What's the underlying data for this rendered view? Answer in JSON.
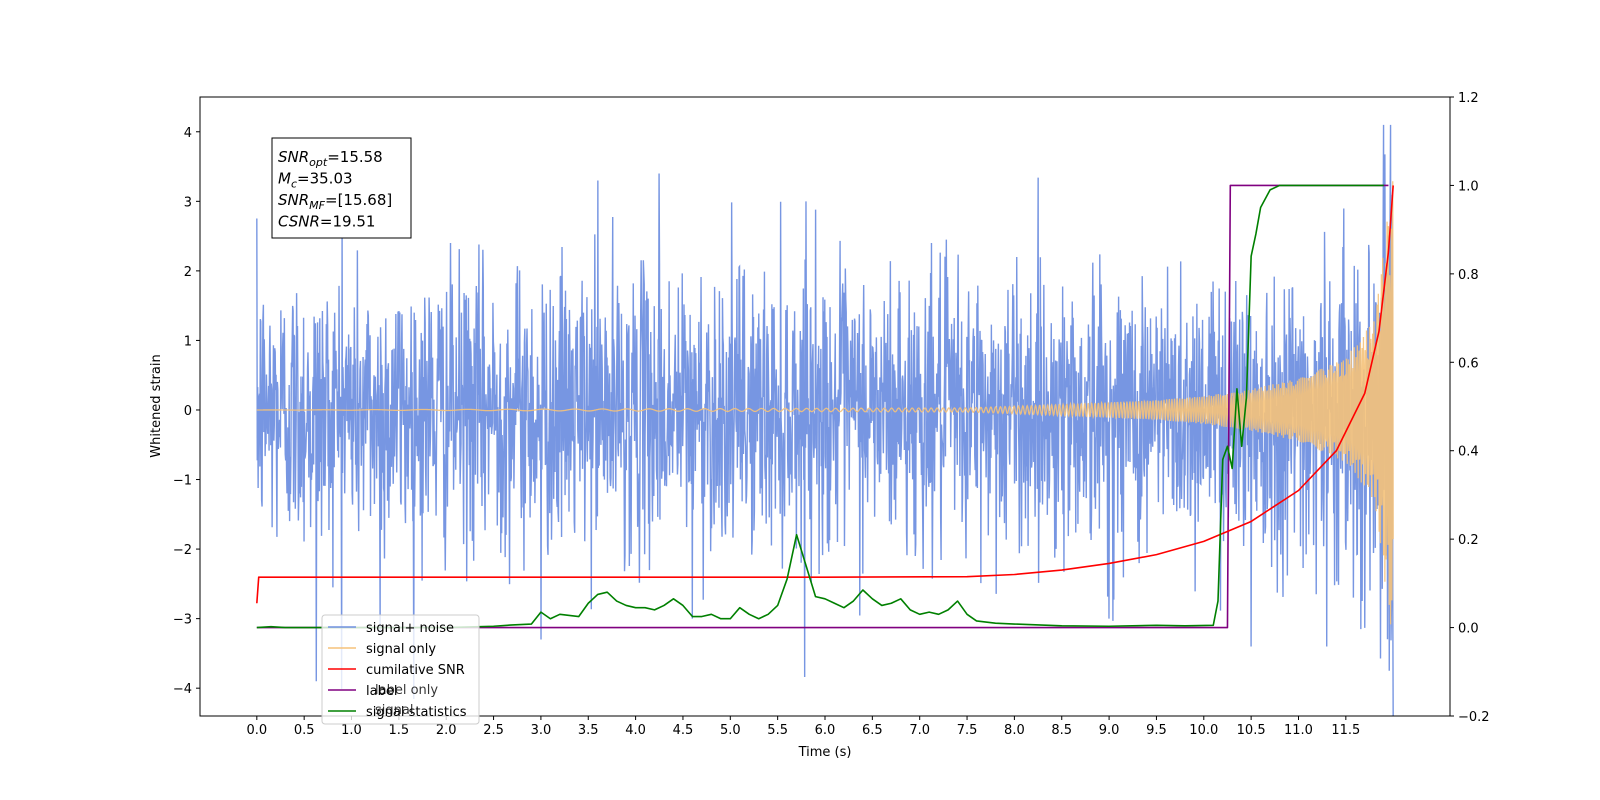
{
  "chart_data": {
    "type": "line",
    "xlabel": "Time (s)",
    "ylabel": "Whitened strain",
    "xlim": [
      -0.6,
      12.6
    ],
    "ylim": [
      -4.4,
      4.5
    ],
    "y2lim": [
      -0.2,
      1.2
    ],
    "x_ticks": [
      "0.0",
      "0.5",
      "1.0",
      "1.5",
      "2.0",
      "2.5",
      "3.0",
      "3.5",
      "4.0",
      "4.5",
      "5.0",
      "5.5",
      "6.0",
      "6.5",
      "7.0",
      "7.5",
      "8.0",
      "8.5",
      "9.0",
      "9.5",
      "10.0",
      "10.5",
      "11.0",
      "11.5"
    ],
    "y_ticks": [
      "4",
      "3",
      "2",
      "1",
      "0",
      "−1",
      "−2",
      "−3",
      "−4"
    ],
    "y2_ticks": [
      "1.2",
      "1.0",
      "0.8",
      "0.6",
      "0.4",
      "0.2",
      "0.0",
      "−0.2"
    ],
    "annotation": {
      "lines": [
        {
          "sym": "SNR",
          "sub": "opt",
          "val": "=15.58"
        },
        {
          "sym": "M",
          "sub": "c",
          "val": "=35.03"
        },
        {
          "sym": "SNR",
          "sub": "MF",
          "val": "=[15.68]"
        },
        {
          "sym": "CSNR",
          "sub": "",
          "val": "=19.51"
        }
      ]
    },
    "legend": {
      "position": "lower-left",
      "entries": [
        {
          "label": "signal+ noise",
          "color": "#7090e0"
        },
        {
          "label": "signal only",
          "color": "#f5c27a"
        },
        {
          "label": "cumilative SNR",
          "color": "#ff0000"
        },
        {
          "label": "label",
          "color": "#800080"
        },
        {
          "label": "signal statistics",
          "color": "#008000"
        }
      ],
      "overdrawn_text": [
        "label only",
        "signal"
      ]
    },
    "series": [
      {
        "name": "signal+ noise",
        "axis": "left",
        "color": "#7090e0",
        "x_range": [
          0.0,
          12.0
        ],
        "envelope_typical": [
          -1.6,
          1.6
        ],
        "spikes": [
          {
            "x": 0.63,
            "y": -3.9
          },
          {
            "x": 0.9,
            "y": 2.8
          },
          {
            "x": 1.3,
            "y": -3.2
          },
          {
            "x": 3.0,
            "y": -3.3
          },
          {
            "x": 3.6,
            "y": 3.3
          },
          {
            "x": 4.25,
            "y": 3.4
          },
          {
            "x": 4.6,
            "y": -3.0
          },
          {
            "x": 5.8,
            "y": 3.0
          },
          {
            "x": 9.0,
            "y": -3.0
          },
          {
            "x": 10.5,
            "y": -3.4
          },
          {
            "x": 11.3,
            "y": 3.55
          },
          {
            "x": 11.3,
            "y": -3.4
          },
          {
            "x": 11.9,
            "y": 4.1
          },
          {
            "x": 11.96,
            "y": -3.75
          },
          {
            "x": 11.97,
            "y": 4.1
          }
        ]
      },
      {
        "name": "signal only",
        "axis": "left",
        "color": "#f5c27a",
        "x": [
          0.0,
          7.5,
          8.5,
          9.5,
          10.0,
          10.5,
          11.0,
          11.5,
          11.8,
          12.0
        ],
        "amplitude": [
          0.0,
          0.03,
          0.08,
          0.14,
          0.2,
          0.3,
          0.45,
          0.75,
          1.3,
          3.4
        ]
      },
      {
        "name": "cumilative SNR",
        "axis": "right",
        "color": "#ff0000",
        "x": [
          0.0,
          0.02,
          0.5,
          2.0,
          4.0,
          6.0,
          7.5,
          8.0,
          8.5,
          9.0,
          9.5,
          10.0,
          10.5,
          11.0,
          11.4,
          11.7,
          11.85,
          11.95,
          12.0
        ],
        "y": [
          0.055,
          0.114,
          0.114,
          0.114,
          0.114,
          0.114,
          0.115,
          0.12,
          0.13,
          0.145,
          0.165,
          0.195,
          0.24,
          0.31,
          0.4,
          0.53,
          0.67,
          0.85,
          1.0
        ]
      },
      {
        "name": "label",
        "axis": "right",
        "color": "#800080",
        "x": [
          0.0,
          10.25,
          10.28,
          11.95
        ],
        "y": [
          0.0,
          0.0,
          1.0,
          1.0
        ]
      },
      {
        "name": "signal statistics",
        "axis": "right",
        "color": "#008000",
        "x": [
          0.0,
          0.15,
          0.3,
          0.5,
          1.0,
          2.0,
          2.5,
          2.7,
          2.9,
          3.0,
          3.1,
          3.2,
          3.4,
          3.5,
          3.6,
          3.7,
          3.8,
          3.9,
          4.0,
          4.1,
          4.2,
          4.3,
          4.4,
          4.5,
          4.6,
          4.7,
          4.8,
          4.9,
          5.0,
          5.1,
          5.2,
          5.3,
          5.4,
          5.5,
          5.6,
          5.7,
          5.8,
          5.9,
          6.0,
          6.1,
          6.2,
          6.3,
          6.4,
          6.5,
          6.6,
          6.7,
          6.8,
          6.9,
          7.0,
          7.1,
          7.2,
          7.3,
          7.4,
          7.5,
          7.6,
          7.8,
          8.0,
          8.5,
          9.0,
          9.5,
          9.8,
          10.1,
          10.15,
          10.2,
          10.25,
          10.3,
          10.35,
          10.4,
          10.45,
          10.5,
          10.55,
          10.6,
          10.7,
          10.8,
          11.0,
          11.5,
          11.9
        ],
        "y": [
          0.0,
          0.002,
          0.0,
          0.0,
          0.0,
          0.0,
          0.003,
          0.006,
          0.008,
          0.035,
          0.02,
          0.03,
          0.025,
          0.055,
          0.075,
          0.08,
          0.06,
          0.05,
          0.045,
          0.045,
          0.04,
          0.05,
          0.065,
          0.05,
          0.025,
          0.025,
          0.03,
          0.02,
          0.02,
          0.045,
          0.03,
          0.02,
          0.03,
          0.05,
          0.11,
          0.21,
          0.14,
          0.07,
          0.065,
          0.055,
          0.045,
          0.06,
          0.085,
          0.065,
          0.05,
          0.055,
          0.065,
          0.04,
          0.03,
          0.035,
          0.03,
          0.04,
          0.06,
          0.03,
          0.015,
          0.01,
          0.008,
          0.004,
          0.003,
          0.005,
          0.004,
          0.005,
          0.06,
          0.38,
          0.41,
          0.36,
          0.54,
          0.41,
          0.52,
          0.84,
          0.89,
          0.95,
          0.99,
          1.0,
          1.0,
          1.0,
          1.0
        ]
      }
    ]
  }
}
